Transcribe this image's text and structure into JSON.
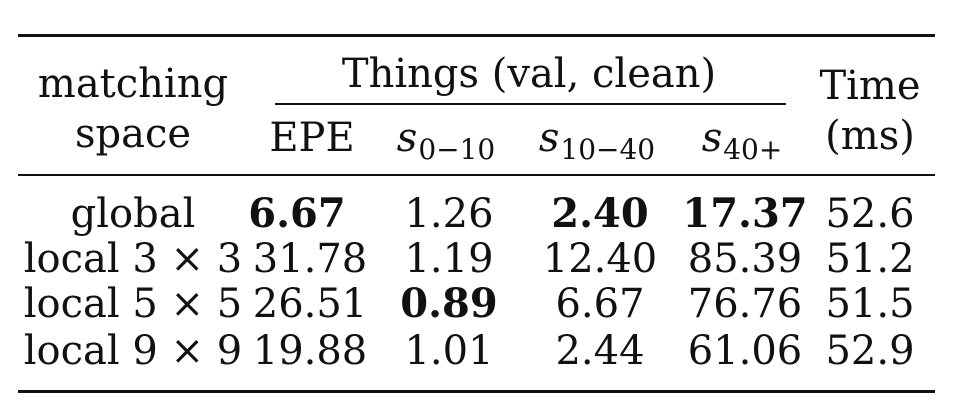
{
  "table": {
    "header": {
      "matching_line1": "matching",
      "matching_line2": "space",
      "group": "Things (val, clean)",
      "epe": "EPE",
      "s1": {
        "sym": "s",
        "sub": "0−10"
      },
      "s2": {
        "sym": "s",
        "sub": "10−40"
      },
      "s3": {
        "sym": "s",
        "sub": "40+"
      },
      "time_line1": "Time",
      "time_line2": "(ms)"
    },
    "rows": [
      {
        "label": "global",
        "epe": "6.67",
        "s1": "1.26",
        "s2": "2.40",
        "s3": "17.37",
        "time": "52.6"
      },
      {
        "label": "local 3 × 3",
        "epe": "31.78",
        "s1": "1.19",
        "s2": "12.40",
        "s3": "85.39",
        "time": "51.2"
      },
      {
        "label": "local 5 × 5",
        "epe": "26.51",
        "s1": "0.89",
        "s2": "6.67",
        "s3": "76.76",
        "time": "51.5"
      },
      {
        "label": "local 9 × 9",
        "epe": "19.88",
        "s1": "1.01",
        "s2": "2.44",
        "s3": "61.06",
        "time": "52.9"
      }
    ],
    "bold_cells": [
      "rows.0.epe",
      "rows.0.s2",
      "rows.0.s3",
      "rows.2.s1"
    ]
  }
}
